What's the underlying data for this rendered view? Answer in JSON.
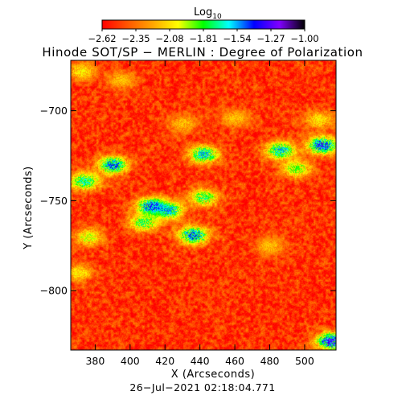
{
  "chart_data": {
    "type": "heatmap",
    "title": "Hinode SOT/SP − MERLIN : Degree of Polarization",
    "xlabel": "X (Arcseconds)",
    "ylabel": "Y (Arcseconds)",
    "timestamp": "26−Jul−2021 02:18:04.771",
    "colorbar": {
      "label": "Log",
      "label_subscript": "10",
      "range": [
        -2.62,
        -1.0
      ],
      "tick_labels": [
        "−2.62",
        "−2.35",
        "−2.08",
        "−1.81",
        "−1.54",
        "−1.27",
        "−1.00"
      ],
      "tick_values": [
        -2.62,
        -2.35,
        -2.08,
        -1.81,
        -1.54,
        -1.27,
        -1.0
      ],
      "colors": [
        "#ff0000",
        "#ff5500",
        "#ffa500",
        "#ffff00",
        "#00ff00",
        "#00ffff",
        "#0000ff",
        "#8000ff",
        "#000000"
      ]
    },
    "xlim": [
      366,
      518
    ],
    "ylim": [
      -833,
      -672
    ],
    "x_ticks": [
      380,
      400,
      420,
      440,
      460,
      480,
      500
    ],
    "x_tick_labels": [
      "380",
      "400",
      "420",
      "440",
      "460",
      "480",
      "500"
    ],
    "y_ticks": [
      -700,
      -750,
      -800
    ],
    "y_tick_labels": [
      "−700",
      "−750",
      "−800"
    ],
    "background_log_value": -2.5,
    "features": [
      {
        "x": 422,
        "y": -755,
        "level": -1.5
      },
      {
        "x": 412,
        "y": -753,
        "level": -1.35
      },
      {
        "x": 436,
        "y": -769,
        "level": -1.4
      },
      {
        "x": 442,
        "y": -724,
        "level": -1.5
      },
      {
        "x": 442,
        "y": -748,
        "level": -1.7
      },
      {
        "x": 408,
        "y": -762,
        "level": -1.7
      },
      {
        "x": 390,
        "y": -730,
        "level": -1.4
      },
      {
        "x": 374,
        "y": -739,
        "level": -1.6
      },
      {
        "x": 376,
        "y": -770,
        "level": -1.9
      },
      {
        "x": 372,
        "y": -678,
        "level": -2.0
      },
      {
        "x": 395,
        "y": -683,
        "level": -2.1
      },
      {
        "x": 430,
        "y": -707,
        "level": -2.1
      },
      {
        "x": 460,
        "y": -704,
        "level": -2.1
      },
      {
        "x": 486,
        "y": -722,
        "level": -1.5
      },
      {
        "x": 510,
        "y": -719,
        "level": -1.3
      },
      {
        "x": 495,
        "y": -732,
        "level": -1.8
      },
      {
        "x": 508,
        "y": -705,
        "level": -2.0
      },
      {
        "x": 480,
        "y": -775,
        "level": -2.1
      },
      {
        "x": 370,
        "y": -790,
        "level": -2.0
      },
      {
        "x": 515,
        "y": -828,
        "level": -1.2
      }
    ]
  }
}
